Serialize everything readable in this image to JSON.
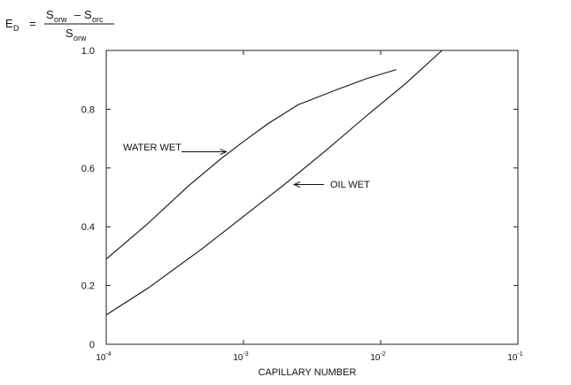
{
  "formula": {
    "lhs": "E",
    "lhs_sub": "D",
    "equals": "=",
    "num_a": "S",
    "num_a_sub": "orw",
    "minus": "–",
    "num_b": "S",
    "num_b_sub": "orc",
    "den": "S",
    "den_sub": "orw"
  },
  "chart_data": {
    "type": "line",
    "xlabel": "CAPILLARY NUMBER",
    "ylabel": "",
    "xscale": "log",
    "xlim": [
      0.0001,
      0.1
    ],
    "ylim": [
      0,
      1.0
    ],
    "x_ticks": [
      {
        "base": "10",
        "exp": "-4",
        "value": 0.0001
      },
      {
        "base": "10",
        "exp": "-3",
        "value": 0.001
      },
      {
        "base": "10",
        "exp": "-2",
        "value": 0.01
      },
      {
        "base": "10",
        "exp": "-1",
        "value": 0.1
      }
    ],
    "y_ticks": [
      {
        "label": "0",
        "value": 0
      },
      {
        "label": "0.2",
        "value": 0.2
      },
      {
        "label": "0.4",
        "value": 0.4
      },
      {
        "label": "0.6",
        "value": 0.6
      },
      {
        "label": "0.8",
        "value": 0.8
      },
      {
        "label": "1.0",
        "value": 1.0
      }
    ],
    "grid": false,
    "series": [
      {
        "name": "WATER WET",
        "color": "#111111",
        "points": [
          [
            0.0001,
            0.29
          ],
          [
            0.0002,
            0.41
          ],
          [
            0.0004,
            0.54
          ],
          [
            0.0007,
            0.635
          ],
          [
            0.001,
            0.69
          ],
          [
            0.0015,
            0.75
          ],
          [
            0.0025,
            0.815
          ],
          [
            0.005,
            0.87
          ],
          [
            0.008,
            0.905
          ],
          [
            0.013,
            0.935
          ]
        ]
      },
      {
        "name": "OIL WET",
        "color": "#111111",
        "points": [
          [
            0.0001,
            0.1
          ],
          [
            0.0002,
            0.19
          ],
          [
            0.0005,
            0.325
          ],
          [
            0.001,
            0.435
          ],
          [
            0.002,
            0.545
          ],
          [
            0.004,
            0.66
          ],
          [
            0.008,
            0.78
          ],
          [
            0.015,
            0.885
          ],
          [
            0.028,
            1.0
          ]
        ]
      }
    ],
    "annotations": [
      {
        "text": "WATER WET",
        "series": "WATER WET",
        "arrow_to": [
          0.00075,
          0.655
        ]
      },
      {
        "text": "OIL WET",
        "series": "OIL WET",
        "arrow_to": [
          0.0022,
          0.545
        ]
      }
    ]
  }
}
